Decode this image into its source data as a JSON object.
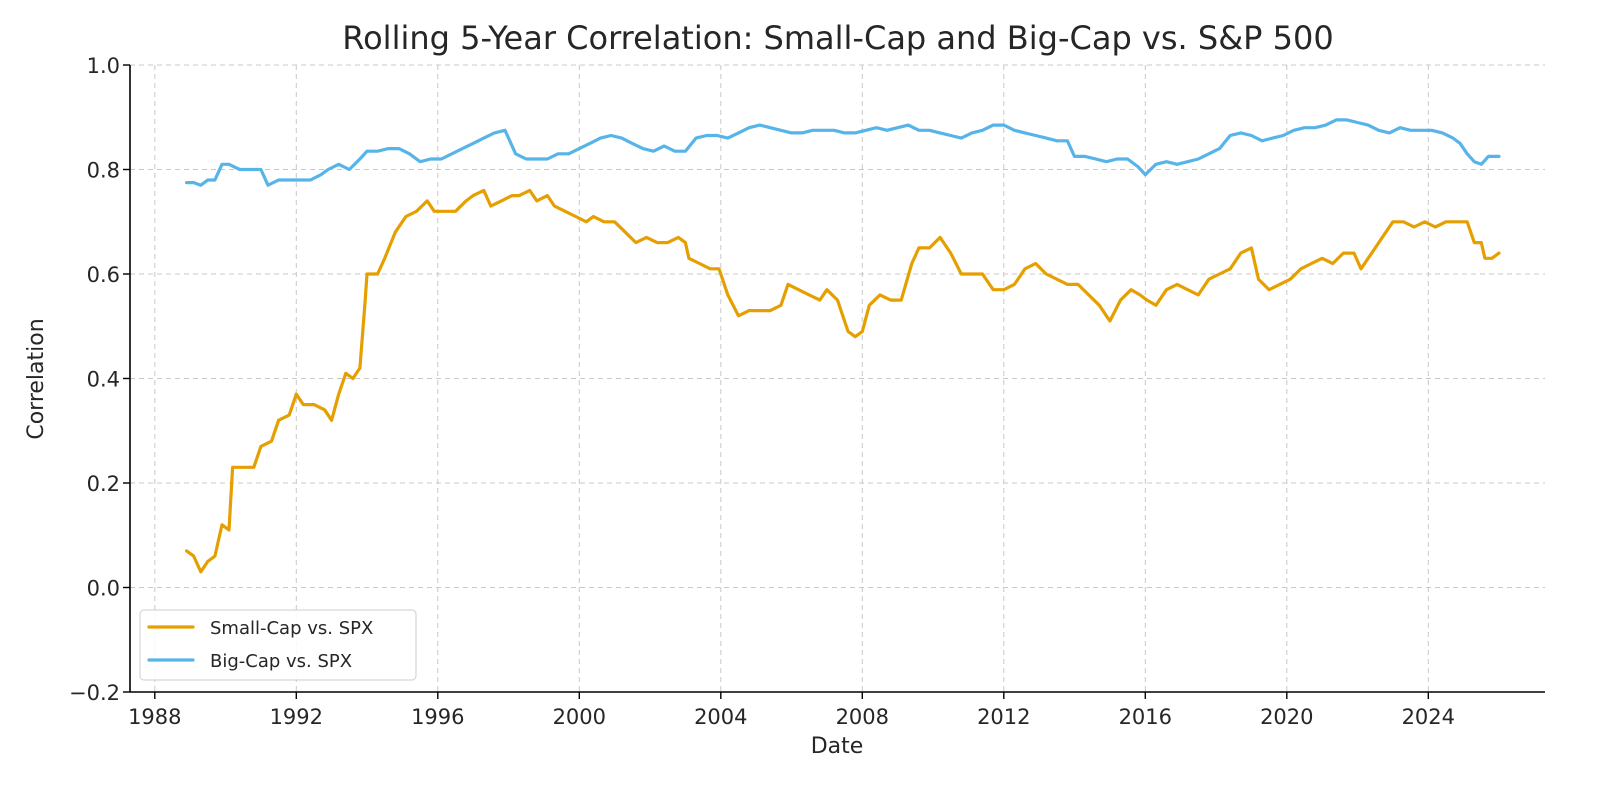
{
  "chart_data": {
    "type": "line",
    "title": "Rolling 5-Year Correlation: Small-Cap and Big-Cap vs. S&P 500",
    "xlabel": "Date",
    "ylabel": "Correlation",
    "xlim": [
      1987.3,
      2027.3
    ],
    "ylim": [
      -0.2,
      1.0
    ],
    "x_ticks": [
      1988,
      1992,
      1996,
      2000,
      2004,
      2008,
      2012,
      2016,
      2020,
      2024
    ],
    "y_ticks": [
      -0.2,
      0.0,
      0.2,
      0.4,
      0.6,
      0.8,
      1.0
    ],
    "y_tick_labels": [
      "−0.2",
      "0.0",
      "0.2",
      "0.4",
      "0.6",
      "0.8",
      "1.0"
    ],
    "grid": true,
    "legend_position": "lower-left",
    "series": [
      {
        "name": "Small-Cap vs. SPX",
        "color": "#E69F00",
        "points": [
          [
            1988.9,
            0.07
          ],
          [
            1989.1,
            0.06
          ],
          [
            1989.3,
            0.03
          ],
          [
            1989.5,
            0.05
          ],
          [
            1989.7,
            0.06
          ],
          [
            1989.9,
            0.12
          ],
          [
            1990.1,
            0.11
          ],
          [
            1990.2,
            0.23
          ],
          [
            1990.5,
            0.23
          ],
          [
            1990.8,
            0.23
          ],
          [
            1991.0,
            0.27
          ],
          [
            1991.3,
            0.28
          ],
          [
            1991.5,
            0.32
          ],
          [
            1991.8,
            0.33
          ],
          [
            1992.0,
            0.37
          ],
          [
            1992.2,
            0.35
          ],
          [
            1992.5,
            0.35
          ],
          [
            1992.8,
            0.34
          ],
          [
            1993.0,
            0.32
          ],
          [
            1993.2,
            0.37
          ],
          [
            1993.4,
            0.41
          ],
          [
            1993.6,
            0.4
          ],
          [
            1993.8,
            0.42
          ],
          [
            1993.95,
            0.55
          ],
          [
            1994.0,
            0.6
          ],
          [
            1994.3,
            0.6
          ],
          [
            1994.5,
            0.63
          ],
          [
            1994.8,
            0.68
          ],
          [
            1995.1,
            0.71
          ],
          [
            1995.4,
            0.72
          ],
          [
            1995.7,
            0.74
          ],
          [
            1995.9,
            0.72
          ],
          [
            1996.2,
            0.72
          ],
          [
            1996.5,
            0.72
          ],
          [
            1996.8,
            0.74
          ],
          [
            1997.0,
            0.75
          ],
          [
            1997.3,
            0.76
          ],
          [
            1997.5,
            0.73
          ],
          [
            1997.8,
            0.74
          ],
          [
            1998.1,
            0.75
          ],
          [
            1998.3,
            0.75
          ],
          [
            1998.6,
            0.76
          ],
          [
            1998.8,
            0.74
          ],
          [
            1999.1,
            0.75
          ],
          [
            1999.3,
            0.73
          ],
          [
            1999.6,
            0.72
          ],
          [
            1999.9,
            0.71
          ],
          [
            2000.2,
            0.7
          ],
          [
            2000.4,
            0.71
          ],
          [
            2000.7,
            0.7
          ],
          [
            2001.0,
            0.7
          ],
          [
            2001.3,
            0.68
          ],
          [
            2001.6,
            0.66
          ],
          [
            2001.9,
            0.67
          ],
          [
            2002.2,
            0.66
          ],
          [
            2002.5,
            0.66
          ],
          [
            2002.8,
            0.67
          ],
          [
            2003.0,
            0.66
          ],
          [
            2003.1,
            0.63
          ],
          [
            2003.4,
            0.62
          ],
          [
            2003.7,
            0.61
          ],
          [
            2003.95,
            0.61
          ],
          [
            2004.2,
            0.56
          ],
          [
            2004.5,
            0.52
          ],
          [
            2004.8,
            0.53
          ],
          [
            2005.1,
            0.53
          ],
          [
            2005.4,
            0.53
          ],
          [
            2005.7,
            0.54
          ],
          [
            2005.9,
            0.58
          ],
          [
            2006.2,
            0.57
          ],
          [
            2006.5,
            0.56
          ],
          [
            2006.8,
            0.55
          ],
          [
            2007.0,
            0.57
          ],
          [
            2007.3,
            0.55
          ],
          [
            2007.6,
            0.49
          ],
          [
            2007.8,
            0.48
          ],
          [
            2008.0,
            0.49
          ],
          [
            2008.2,
            0.54
          ],
          [
            2008.5,
            0.56
          ],
          [
            2008.8,
            0.55
          ],
          [
            2009.1,
            0.55
          ],
          [
            2009.4,
            0.62
          ],
          [
            2009.6,
            0.65
          ],
          [
            2009.9,
            0.65
          ],
          [
            2010.2,
            0.67
          ],
          [
            2010.5,
            0.64
          ],
          [
            2010.8,
            0.6
          ],
          [
            2011.1,
            0.6
          ],
          [
            2011.4,
            0.6
          ],
          [
            2011.7,
            0.57
          ],
          [
            2012.0,
            0.57
          ],
          [
            2012.3,
            0.58
          ],
          [
            2012.6,
            0.61
          ],
          [
            2012.9,
            0.62
          ],
          [
            2013.2,
            0.6
          ],
          [
            2013.5,
            0.59
          ],
          [
            2013.8,
            0.58
          ],
          [
            2014.1,
            0.58
          ],
          [
            2014.4,
            0.56
          ],
          [
            2014.7,
            0.54
          ],
          [
            2015.0,
            0.51
          ],
          [
            2015.3,
            0.55
          ],
          [
            2015.6,
            0.57
          ],
          [
            2015.85,
            0.56
          ],
          [
            2016.05,
            0.55
          ],
          [
            2016.3,
            0.54
          ],
          [
            2016.6,
            0.57
          ],
          [
            2016.9,
            0.58
          ],
          [
            2017.2,
            0.57
          ],
          [
            2017.5,
            0.56
          ],
          [
            2017.8,
            0.59
          ],
          [
            2018.1,
            0.6
          ],
          [
            2018.4,
            0.61
          ],
          [
            2018.7,
            0.64
          ],
          [
            2019.0,
            0.65
          ],
          [
            2019.2,
            0.59
          ],
          [
            2019.5,
            0.57
          ],
          [
            2019.8,
            0.58
          ],
          [
            2020.1,
            0.59
          ],
          [
            2020.4,
            0.61
          ],
          [
            2020.7,
            0.62
          ],
          [
            2021.0,
            0.63
          ],
          [
            2021.3,
            0.62
          ],
          [
            2021.6,
            0.64
          ],
          [
            2021.9,
            0.64
          ],
          [
            2022.1,
            0.61
          ],
          [
            2022.4,
            0.64
          ],
          [
            2022.7,
            0.67
          ],
          [
            2023.0,
            0.7
          ],
          [
            2023.3,
            0.7
          ],
          [
            2023.6,
            0.69
          ],
          [
            2023.9,
            0.7
          ],
          [
            2024.2,
            0.69
          ],
          [
            2024.5,
            0.7
          ],
          [
            2024.8,
            0.7
          ],
          [
            2025.1,
            0.7
          ],
          [
            2025.3,
            0.66
          ],
          [
            2025.5,
            0.66
          ],
          [
            2025.6,
            0.63
          ],
          [
            2025.8,
            0.63
          ],
          [
            2026.0,
            0.64
          ]
        ]
      },
      {
        "name": "Big-Cap vs. SPX",
        "color": "#56B4E9",
        "points": [
          [
            1988.9,
            0.775
          ],
          [
            1989.1,
            0.775
          ],
          [
            1989.3,
            0.77
          ],
          [
            1989.5,
            0.78
          ],
          [
            1989.7,
            0.78
          ],
          [
            1989.9,
            0.81
          ],
          [
            1990.1,
            0.81
          ],
          [
            1990.4,
            0.8
          ],
          [
            1990.7,
            0.8
          ],
          [
            1991.0,
            0.8
          ],
          [
            1991.2,
            0.77
          ],
          [
            1991.5,
            0.78
          ],
          [
            1991.8,
            0.78
          ],
          [
            1992.1,
            0.78
          ],
          [
            1992.4,
            0.78
          ],
          [
            1992.7,
            0.79
          ],
          [
            1992.9,
            0.8
          ],
          [
            1993.2,
            0.81
          ],
          [
            1993.5,
            0.8
          ],
          [
            1993.8,
            0.82
          ],
          [
            1994.0,
            0.835
          ],
          [
            1994.3,
            0.835
          ],
          [
            1994.6,
            0.84
          ],
          [
            1994.9,
            0.84
          ],
          [
            1995.2,
            0.83
          ],
          [
            1995.5,
            0.815
          ],
          [
            1995.8,
            0.82
          ],
          [
            1996.1,
            0.82
          ],
          [
            1996.4,
            0.83
          ],
          [
            1996.7,
            0.84
          ],
          [
            1997.0,
            0.85
          ],
          [
            1997.3,
            0.86
          ],
          [
            1997.6,
            0.87
          ],
          [
            1997.9,
            0.875
          ],
          [
            1998.2,
            0.83
          ],
          [
            1998.5,
            0.82
          ],
          [
            1998.8,
            0.82
          ],
          [
            1999.1,
            0.82
          ],
          [
            1999.4,
            0.83
          ],
          [
            1999.7,
            0.83
          ],
          [
            2000.0,
            0.84
          ],
          [
            2000.3,
            0.85
          ],
          [
            2000.6,
            0.86
          ],
          [
            2000.9,
            0.865
          ],
          [
            2001.2,
            0.86
          ],
          [
            2001.5,
            0.85
          ],
          [
            2001.8,
            0.84
          ],
          [
            2002.1,
            0.835
          ],
          [
            2002.4,
            0.845
          ],
          [
            2002.7,
            0.835
          ],
          [
            2003.0,
            0.835
          ],
          [
            2003.3,
            0.86
          ],
          [
            2003.6,
            0.865
          ],
          [
            2003.9,
            0.865
          ],
          [
            2004.2,
            0.86
          ],
          [
            2004.5,
            0.87
          ],
          [
            2004.8,
            0.88
          ],
          [
            2005.1,
            0.885
          ],
          [
            2005.4,
            0.88
          ],
          [
            2005.7,
            0.875
          ],
          [
            2006.0,
            0.87
          ],
          [
            2006.3,
            0.87
          ],
          [
            2006.6,
            0.875
          ],
          [
            2006.9,
            0.875
          ],
          [
            2007.2,
            0.875
          ],
          [
            2007.5,
            0.87
          ],
          [
            2007.8,
            0.87
          ],
          [
            2008.1,
            0.875
          ],
          [
            2008.4,
            0.88
          ],
          [
            2008.7,
            0.875
          ],
          [
            2009.0,
            0.88
          ],
          [
            2009.3,
            0.885
          ],
          [
            2009.6,
            0.875
          ],
          [
            2009.9,
            0.875
          ],
          [
            2010.2,
            0.87
          ],
          [
            2010.5,
            0.865
          ],
          [
            2010.8,
            0.86
          ],
          [
            2011.1,
            0.87
          ],
          [
            2011.4,
            0.875
          ],
          [
            2011.7,
            0.885
          ],
          [
            2012.0,
            0.885
          ],
          [
            2012.3,
            0.875
          ],
          [
            2012.6,
            0.87
          ],
          [
            2012.9,
            0.865
          ],
          [
            2013.2,
            0.86
          ],
          [
            2013.5,
            0.855
          ],
          [
            2013.8,
            0.855
          ],
          [
            2014.0,
            0.825
          ],
          [
            2014.3,
            0.825
          ],
          [
            2014.6,
            0.82
          ],
          [
            2014.9,
            0.815
          ],
          [
            2015.2,
            0.82
          ],
          [
            2015.5,
            0.82
          ],
          [
            2015.8,
            0.805
          ],
          [
            2016.0,
            0.79
          ],
          [
            2016.3,
            0.81
          ],
          [
            2016.6,
            0.815
          ],
          [
            2016.9,
            0.81
          ],
          [
            2017.2,
            0.815
          ],
          [
            2017.5,
            0.82
          ],
          [
            2017.8,
            0.83
          ],
          [
            2018.1,
            0.84
          ],
          [
            2018.4,
            0.865
          ],
          [
            2018.7,
            0.87
          ],
          [
            2019.0,
            0.865
          ],
          [
            2019.3,
            0.855
          ],
          [
            2019.6,
            0.86
          ],
          [
            2019.9,
            0.865
          ],
          [
            2020.2,
            0.875
          ],
          [
            2020.5,
            0.88
          ],
          [
            2020.8,
            0.88
          ],
          [
            2021.1,
            0.885
          ],
          [
            2021.4,
            0.895
          ],
          [
            2021.7,
            0.895
          ],
          [
            2022.0,
            0.89
          ],
          [
            2022.3,
            0.885
          ],
          [
            2022.6,
            0.875
          ],
          [
            2022.9,
            0.87
          ],
          [
            2023.2,
            0.88
          ],
          [
            2023.5,
            0.875
          ],
          [
            2023.8,
            0.875
          ],
          [
            2024.1,
            0.875
          ],
          [
            2024.4,
            0.87
          ],
          [
            2024.7,
            0.86
          ],
          [
            2024.9,
            0.85
          ],
          [
            2025.1,
            0.83
          ],
          [
            2025.3,
            0.815
          ],
          [
            2025.5,
            0.81
          ],
          [
            2025.7,
            0.825
          ],
          [
            2026.0,
            0.825
          ]
        ]
      }
    ]
  }
}
